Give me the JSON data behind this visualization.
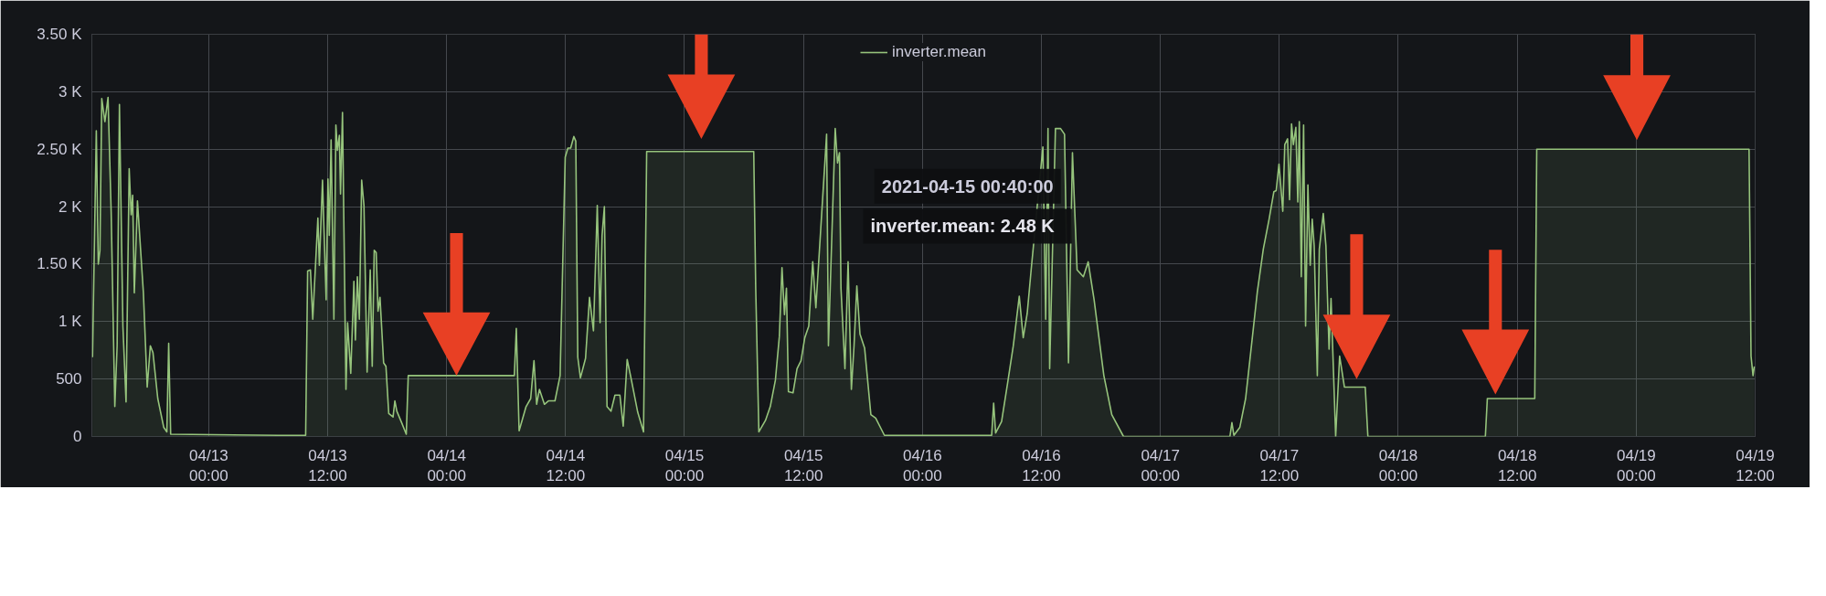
{
  "chart_data": {
    "type": "area",
    "x": [
      "2021-04-12T12:17",
      "2021-04-12T12:40",
      "2021-04-12T12:52",
      "2021-04-12T13:02",
      "2021-04-12T13:13",
      "2021-04-12T13:32",
      "2021-04-12T13:51",
      "2021-04-12T14:10",
      "2021-04-12T14:32",
      "2021-04-12T14:46",
      "2021-04-12T15:00",
      "2021-04-12T15:21",
      "2021-04-12T15:40",
      "2021-04-12T15:59",
      "2021-04-12T16:11",
      "2021-04-12T16:20",
      "2021-04-12T16:30",
      "2021-04-12T16:49",
      "2021-04-12T17:25",
      "2021-04-12T17:48",
      "2021-04-12T18:07",
      "2021-04-12T18:23",
      "2021-04-12T18:52",
      "2021-04-12T19:28",
      "2021-04-12T19:47",
      "2021-04-12T19:58",
      "2021-04-12T20:10",
      "2021-04-13T07:00",
      "2021-04-13T09:47",
      "2021-04-13T09:59",
      "2021-04-13T10:16",
      "2021-04-13T10:30",
      "2021-04-13T11:01",
      "2021-04-13T11:10",
      "2021-04-13T11:29",
      "2021-04-13T11:51",
      "2021-04-13T12:02",
      "2021-04-13T12:10",
      "2021-04-13T12:21",
      "2021-04-13T12:38",
      "2021-04-13T12:50",
      "2021-04-13T12:59",
      "2021-04-13T13:11",
      "2021-04-13T13:18",
      "2021-04-13T13:30",
      "2021-04-13T13:51",
      "2021-04-13T14:01",
      "2021-04-13T14:20",
      "2021-04-13T14:39",
      "2021-04-13T14:48",
      "2021-04-13T15:00",
      "2021-04-13T15:12",
      "2021-04-13T15:26",
      "2021-04-13T15:40",
      "2021-04-13T15:59",
      "2021-04-13T16:18",
      "2021-04-13T16:30",
      "2021-04-13T16:42",
      "2021-04-13T16:54",
      "2021-04-13T17:05",
      "2021-04-13T17:17",
      "2021-04-13T17:39",
      "2021-04-13T17:53",
      "2021-04-13T18:10",
      "2021-04-13T18:36",
      "2021-04-13T18:47",
      "2021-04-13T18:59",
      "2021-04-13T19:28",
      "2021-04-13T19:56",
      "2021-04-13T20:08",
      "2021-04-14T06:50",
      "2021-04-14T07:02",
      "2021-04-14T07:19",
      "2021-04-14T08:01",
      "2021-04-14T08:29",
      "2021-04-14T08:49",
      "2021-04-14T09:05",
      "2021-04-14T09:22",
      "2021-04-14T09:52",
      "2021-04-14T10:16",
      "2021-04-14T10:56",
      "2021-04-14T11:27",
      "2021-04-14T11:58",
      "2021-04-14T12:14",
      "2021-04-14T12:31",
      "2021-04-14T12:50",
      "2021-04-14T13:02",
      "2021-04-14T13:14",
      "2021-04-14T13:30",
      "2021-04-14T14:01",
      "2021-04-14T14:25",
      "2021-04-14T14:49",
      "2021-04-14T15:12",
      "2021-04-14T15:29",
      "2021-04-14T15:41",
      "2021-04-14T15:55",
      "2021-04-14T16:11",
      "2021-04-14T16:35",
      "2021-04-14T16:59",
      "2021-04-14T17:29",
      "2021-04-14T17:49",
      "2021-04-14T18:13",
      "2021-04-14T18:36",
      "2021-04-14T19:17",
      "2021-04-14T19:52",
      "2021-04-14T20:11",
      "2021-04-15T06:59",
      "2021-04-15T07:11",
      "2021-04-15T07:30",
      "2021-04-15T08:10",
      "2021-04-15T08:39",
      "2021-04-15T09:10",
      "2021-04-15T09:34",
      "2021-04-15T09:50",
      "2021-04-15T10:05",
      "2021-04-15T10:17",
      "2021-04-15T10:29",
      "2021-04-15T10:57",
      "2021-04-15T11:21",
      "2021-04-15T11:45",
      "2021-04-15T12:08",
      "2021-04-15T12:32",
      "2021-04-15T12:56",
      "2021-04-15T13:15",
      "2021-04-15T14:20",
      "2021-04-15T14:31",
      "2021-04-15T15:12",
      "2021-04-15T15:26",
      "2021-04-15T15:38",
      "2021-04-15T15:47",
      "2021-04-15T16:11",
      "2021-04-15T16:30",
      "2021-04-15T16:50",
      "2021-04-15T17:06",
      "2021-04-15T17:23",
      "2021-04-15T17:42",
      "2021-04-15T18:10",
      "2021-04-15T18:48",
      "2021-04-15T19:17",
      "2021-04-15T20:10",
      "2021-04-16T06:59",
      "2021-04-16T07:11",
      "2021-04-16T07:23",
      "2021-04-16T07:59",
      "2021-04-16T08:35",
      "2021-04-16T09:10",
      "2021-04-16T09:46",
      "2021-04-16T10:10",
      "2021-04-16T10:34",
      "2021-04-16T10:58",
      "2021-04-16T12:09",
      "2021-04-16T12:26",
      "2021-04-16T12:40",
      "2021-04-16T12:50",
      "2021-04-16T13:25",
      "2021-04-16T13:56",
      "2021-04-16T14:20",
      "2021-04-16T14:44",
      "2021-04-16T15:08",
      "2021-04-16T15:36",
      "2021-04-16T16:14",
      "2021-04-16T16:43",
      "2021-04-16T17:19",
      "2021-04-16T17:43",
      "2021-04-16T18:18",
      "2021-04-16T19:06",
      "2021-04-16T20:17",
      "2021-04-17T07:01",
      "2021-04-17T07:13",
      "2021-04-17T07:25",
      "2021-04-17T08:01",
      "2021-04-17T08:36",
      "2021-04-17T09:12",
      "2021-04-17T09:47",
      "2021-04-17T10:23",
      "2021-04-17T10:58",
      "2021-04-17T11:27",
      "2021-04-17T11:41",
      "2021-04-17T11:58",
      "2021-04-17T12:21",
      "2021-04-17T12:33",
      "2021-04-17T12:50",
      "2021-04-17T13:02",
      "2021-04-17T13:14",
      "2021-04-17T13:25",
      "2021-04-17T13:40",
      "2021-04-17T13:52",
      "2021-04-17T14:01",
      "2021-04-17T14:13",
      "2021-04-17T14:27",
      "2021-04-17T14:39",
      "2021-04-17T14:53",
      "2021-04-17T15:07",
      "2021-04-17T15:19",
      "2021-04-17T15:31",
      "2021-04-17T15:50",
      "2021-04-17T16:02",
      "2021-04-17T16:26",
      "2021-04-17T16:42",
      "2021-04-17T17:01",
      "2021-04-17T17:13",
      "2021-04-17T17:41",
      "2021-04-17T18:05",
      "2021-04-17T18:34",
      "2021-04-17T20:40",
      "2021-04-17T20:56",
      "2021-04-18T08:47",
      "2021-04-18T08:59",
      "2021-04-18T13:46",
      "2021-04-18T13:58",
      "2021-04-19T11:23",
      "2021-04-19T11:35",
      "2021-04-19T11:47",
      "2021-04-19T11:55"
    ],
    "series": [
      {
        "name": "inverter.mean",
        "color": "#96c47c",
        "values": [
          690,
          2660,
          1500,
          1620,
          2940,
          2740,
          2950,
          1950,
          260,
          790,
          2890,
          960,
          300,
          2330,
          1930,
          2100,
          1250,
          2050,
          1250,
          430,
          790,
          730,
          330,
          80,
          40,
          810,
          20,
          10,
          10,
          1440,
          1450,
          1020,
          1900,
          1490,
          2230,
          1190,
          2240,
          1750,
          2580,
          1020,
          2710,
          2490,
          2620,
          2110,
          2820,
          410,
          990,
          550,
          1350,
          840,
          1390,
          1020,
          2230,
          2010,
          560,
          1450,
          610,
          1620,
          1600,
          1090,
          1210,
          640,
          610,
          200,
          170,
          310,
          220,
          120,
          20,
          530,
          530,
          940,
          50,
          260,
          330,
          660,
          280,
          410,
          280,
          310,
          310,
          530,
          2430,
          2510,
          2510,
          2610,
          2570,
          690,
          510,
          680,
          1210,
          920,
          2010,
          990,
          1750,
          2000,
          260,
          220,
          360,
          360,
          90,
          670,
          510,
          210,
          40,
          2480,
          2480,
          1290,
          40,
          140,
          260,
          490,
          870,
          1470,
          1060,
          1290,
          390,
          380,
          590,
          660,
          860,
          960,
          1520,
          1120,
          2630,
          790,
          2680,
          2380,
          2470,
          1290,
          590,
          1520,
          410,
          790,
          1310,
          890,
          770,
          190,
          160,
          10,
          10,
          290,
          30,
          130,
          460,
          790,
          1220,
          860,
          1070,
          1450,
          2520,
          1020,
          2680,
          590,
          2680,
          2680,
          2630,
          640,
          2470,
          1450,
          1390,
          1520,
          1190,
          920,
          530,
          190,
          0,
          0,
          120,
          10,
          80,
          330,
          800,
          1260,
          1630,
          1890,
          2130,
          2140,
          2370,
          1960,
          2540,
          2590,
          2060,
          2720,
          2540,
          2690,
          2040,
          2740,
          1390,
          2710,
          960,
          2190,
          1490,
          1890,
          1660,
          530,
          1630,
          1940,
          1660,
          760,
          1200,
          null,
          700,
          430,
          430,
          0,
          0,
          330,
          330,
          2500,
          2500,
          700,
          530,
          610
        ]
      }
    ],
    "xlim": [
      "2021-04-12T12:13",
      "2021-04-19T12:00"
    ],
    "xticks": [
      {
        "value": "2021-04-13T00:00",
        "label": "04/13\n00:00"
      },
      {
        "value": "2021-04-13T12:00",
        "label": "04/13\n12:00"
      },
      {
        "value": "2021-04-14T00:00",
        "label": "04/14\n00:00"
      },
      {
        "value": "2021-04-14T12:00",
        "label": "04/14\n12:00"
      },
      {
        "value": "2021-04-15T00:00",
        "label": "04/15\n00:00"
      },
      {
        "value": "2021-04-15T12:00",
        "label": "04/15\n12:00"
      },
      {
        "value": "2021-04-16T00:00",
        "label": "04/16\n00:00"
      },
      {
        "value": "2021-04-16T12:00",
        "label": "04/16\n12:00"
      },
      {
        "value": "2021-04-17T00:00",
        "label": "04/17\n00:00"
      },
      {
        "value": "2021-04-17T12:00",
        "label": "04/17\n12:00"
      },
      {
        "value": "2021-04-18T00:00",
        "label": "04/18\n00:00"
      },
      {
        "value": "2021-04-18T12:00",
        "label": "04/18\n12:00"
      },
      {
        "value": "2021-04-19T00:00",
        "label": "04/19\n00:00"
      },
      {
        "value": "2021-04-19T12:00",
        "label": "04/19\n12:00"
      }
    ],
    "ylim": [
      0,
      3500
    ],
    "yticks": [
      0,
      500,
      {
        "value": 1000,
        "label": "1 K"
      },
      {
        "value": 1500,
        "label": "1.50 K"
      },
      {
        "value": 2000,
        "label": "2 K"
      },
      {
        "value": 2500,
        "label": "2.50 K"
      },
      {
        "value": 3000,
        "label": "3 K"
      },
      {
        "value": 3500,
        "label": "3.50 K"
      }
    ],
    "grid": true,
    "legend": "top",
    "annotations": [
      "2021-04-15 00:40:00",
      "inverter.mean:   2.48 K"
    ]
  }
}
